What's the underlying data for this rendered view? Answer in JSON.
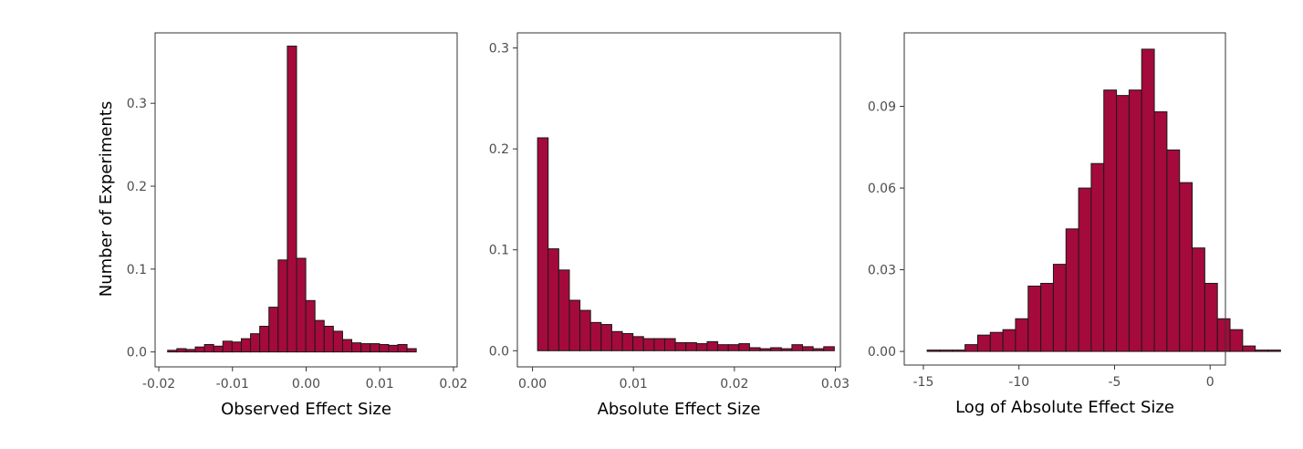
{
  "figure": {
    "ylabel": "Number of Experiments",
    "bar_color": "#a50a3c",
    "bar_edge_color": "#1a1a1a"
  },
  "chart_data": [
    {
      "type": "bar",
      "xlabel": "Observed Effect Size",
      "xlim": [
        -0.0205,
        0.0205
      ],
      "ylim": [
        -0.018,
        0.385
      ],
      "xticks": [
        -0.02,
        -0.01,
        0.0,
        0.01,
        0.02
      ],
      "xtick_labels": [
        "-0.02",
        "-0.01",
        "0.00",
        "0.01",
        "0.02"
      ],
      "yticks": [
        0.0,
        0.1,
        0.2,
        0.3
      ],
      "ytick_labels": [
        "0.0",
        "0.1",
        "0.2",
        "0.3"
      ],
      "bin_start": -0.0188,
      "bin_width": 0.00125,
      "values": [
        0.002,
        0.004,
        0.003,
        0.006,
        0.009,
        0.007,
        0.013,
        0.012,
        0.016,
        0.022,
        0.031,
        0.054,
        0.111,
        0.369,
        0.113,
        0.062,
        0.038,
        0.031,
        0.025,
        0.015,
        0.011,
        0.01,
        0.01,
        0.009,
        0.008,
        0.009,
        0.004
      ],
      "grid": false
    },
    {
      "type": "bar",
      "xlabel": "Absolute Effect Size",
      "xlim": [
        -0.0015,
        0.0305
      ],
      "ylim": [
        -0.016,
        0.315
      ],
      "xticks": [
        0.0,
        0.01,
        0.02,
        0.03
      ],
      "xtick_labels": [
        "0.00",
        "0.01",
        "0.02",
        "0.03"
      ],
      "yticks": [
        0.0,
        0.1,
        0.2,
        0.3
      ],
      "ytick_labels": [
        "0.0",
        "0.1",
        "0.2",
        "0.3"
      ],
      "bin_start": 0.0005,
      "bin_width": 0.00105,
      "values": [
        0.211,
        0.101,
        0.08,
        0.05,
        0.04,
        0.028,
        0.026,
        0.019,
        0.017,
        0.014,
        0.012,
        0.012,
        0.012,
        0.008,
        0.008,
        0.007,
        0.009,
        0.006,
        0.006,
        0.007,
        0.003,
        0.002,
        0.003,
        0.002,
        0.006,
        0.004,
        0.002,
        0.004
      ],
      "grid": false
    },
    {
      "type": "bar",
      "xlabel": "Log of Absolute Effect Size",
      "xlim": [
        -16.0,
        0.8
      ],
      "ylim": [
        -0.005,
        0.117
      ],
      "xticks": [
        -15,
        -10,
        -5,
        0
      ],
      "xtick_labels": [
        "-15",
        "-10",
        "-5",
        "0"
      ],
      "yticks": [
        0.0,
        0.03,
        0.06,
        0.09
      ],
      "ytick_labels": [
        "0.00",
        "0.03",
        "0.06",
        "0.09"
      ],
      "bin_start": -14.8,
      "bin_width": 0.66,
      "values": [
        0.0005,
        0.0005,
        0.0005,
        0.0025,
        0.006,
        0.007,
        0.008,
        0.012,
        0.024,
        0.025,
        0.032,
        0.045,
        0.06,
        0.069,
        0.096,
        0.094,
        0.096,
        0.111,
        0.088,
        0.074,
        0.062,
        0.038,
        0.025,
        0.012,
        0.008,
        0.002,
        0.0005,
        0.0005
      ],
      "grid": false
    }
  ]
}
